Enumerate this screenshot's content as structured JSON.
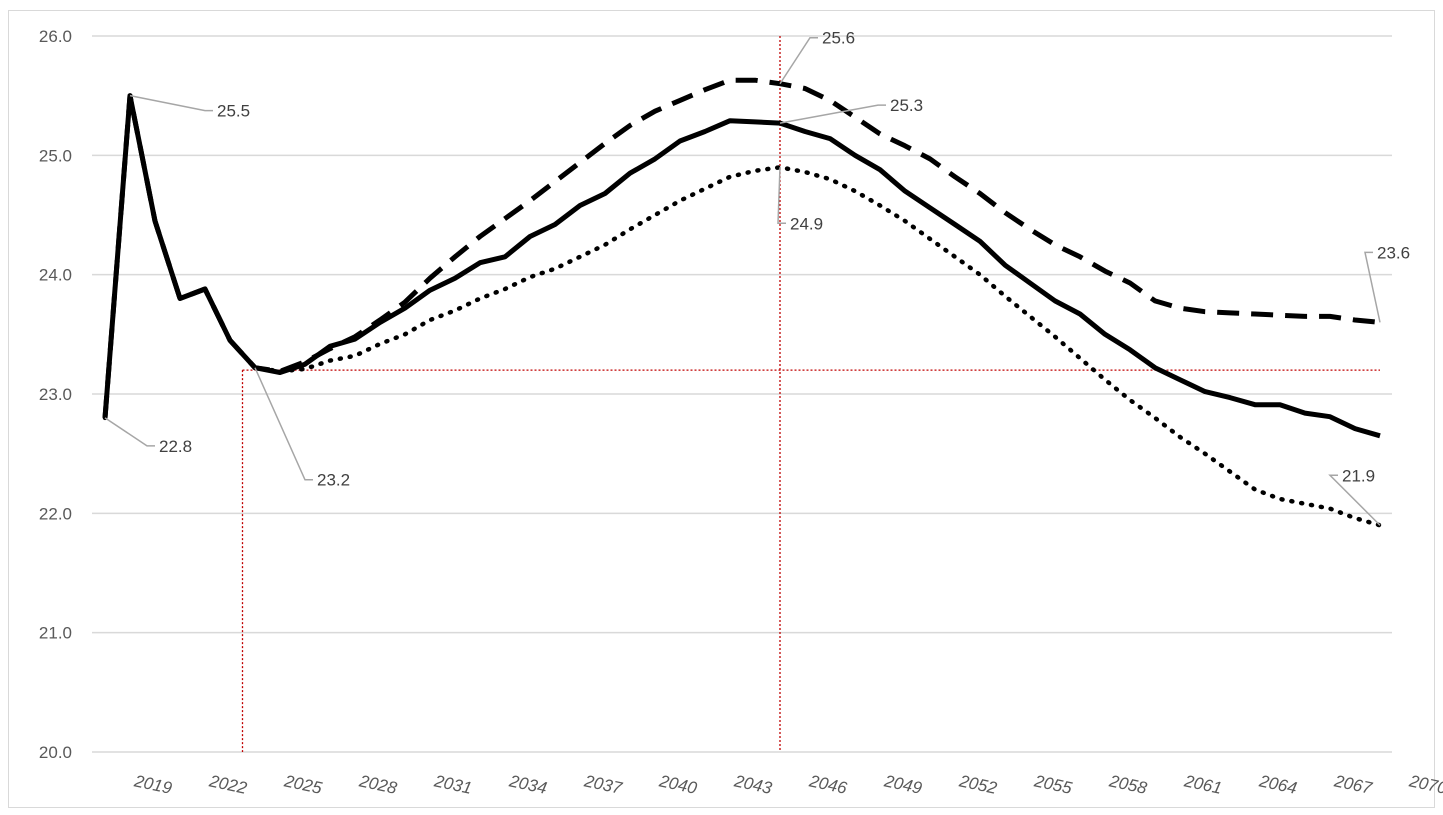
{
  "chart_data": {
    "type": "line",
    "title": "",
    "xlabel": "",
    "ylabel": "",
    "ylim": [
      20,
      26
    ],
    "yticks": [
      "20.0",
      "21.0",
      "22.0",
      "23.0",
      "24.0",
      "25.0",
      "26.0"
    ],
    "xlim": [
      2018,
      2070
    ],
    "xticks": [
      "2019",
      "2022",
      "2025",
      "2028",
      "2031",
      "2034",
      "2037",
      "2040",
      "2043",
      "2046",
      "2049",
      "2052",
      "2055",
      "2058",
      "2061",
      "2064",
      "2067",
      "2070"
    ],
    "grid": true,
    "legend": "none",
    "reference_lines": {
      "x": 2045,
      "y": 23.2,
      "x_from": 2023.5,
      "color": "#c00000"
    },
    "series": [
      {
        "style": "solid",
        "x": [
          2018,
          2019,
          2020,
          2021,
          2022,
          2023,
          2024,
          2025,
          2026,
          2027,
          2028,
          2029,
          2030,
          2031,
          2032,
          2033,
          2034,
          2035,
          2036,
          2037,
          2038,
          2039,
          2040,
          2041,
          2042,
          2043,
          2044,
          2045,
          2046,
          2047,
          2048,
          2049,
          2050,
          2051,
          2052,
          2053,
          2054,
          2055,
          2056,
          2057,
          2058,
          2059,
          2060,
          2061,
          2062,
          2063,
          2064,
          2065,
          2066,
          2067,
          2068,
          2069
        ],
        "values": [
          22.8,
          25.5,
          24.45,
          23.8,
          23.88,
          23.45,
          23.22,
          23.18,
          23.25,
          23.4,
          23.46,
          23.6,
          23.72,
          23.87,
          23.97,
          24.1,
          24.15,
          24.32,
          24.42,
          24.58,
          24.68,
          24.85,
          24.97,
          25.12,
          25.2,
          25.29,
          25.28,
          25.27,
          25.2,
          25.14,
          25.0,
          24.88,
          24.7,
          24.56,
          24.42,
          24.28,
          24.08,
          23.93,
          23.78,
          23.67,
          23.5,
          23.37,
          23.22,
          23.12,
          23.02,
          22.97,
          22.91,
          22.91,
          22.84,
          22.81,
          22.71,
          22.65
        ]
      },
      {
        "style": "dashed",
        "x": [
          2018,
          2019,
          2020,
          2021,
          2022,
          2023,
          2024,
          2025,
          2026,
          2027,
          2028,
          2029,
          2030,
          2031,
          2032,
          2033,
          2034,
          2035,
          2036,
          2037,
          2038,
          2039,
          2040,
          2041,
          2042,
          2043,
          2044,
          2045,
          2046,
          2047,
          2048,
          2049,
          2050,
          2051,
          2052,
          2053,
          2054,
          2055,
          2056,
          2057,
          2058,
          2059,
          2060,
          2061,
          2062,
          2063,
          2064,
          2065,
          2066,
          2067,
          2068,
          2069
        ],
        "values": [
          22.8,
          25.5,
          24.45,
          23.8,
          23.88,
          23.45,
          23.22,
          23.19,
          23.27,
          23.38,
          23.48,
          23.62,
          23.77,
          23.97,
          24.15,
          24.32,
          24.47,
          24.62,
          24.78,
          24.94,
          25.1,
          25.25,
          25.37,
          25.46,
          25.55,
          25.63,
          25.63,
          25.6,
          25.56,
          25.46,
          25.32,
          25.18,
          25.08,
          24.97,
          24.82,
          24.68,
          24.52,
          24.38,
          24.25,
          24.15,
          24.03,
          23.93,
          23.78,
          23.72,
          23.69,
          23.68,
          23.67,
          23.66,
          23.65,
          23.65,
          23.62,
          23.6
        ]
      },
      {
        "style": "dotted",
        "x": [
          2018,
          2019,
          2020,
          2021,
          2022,
          2023,
          2024,
          2025,
          2026,
          2027,
          2028,
          2029,
          2030,
          2031,
          2032,
          2033,
          2034,
          2035,
          2036,
          2037,
          2038,
          2039,
          2040,
          2041,
          2042,
          2043,
          2044,
          2045,
          2046,
          2047,
          2048,
          2049,
          2050,
          2051,
          2052,
          2053,
          2054,
          2055,
          2056,
          2057,
          2058,
          2059,
          2060,
          2061,
          2062,
          2063,
          2064,
          2065,
          2066,
          2067,
          2068,
          2069
        ],
        "values": [
          22.8,
          25.5,
          24.45,
          23.8,
          23.88,
          23.45,
          23.22,
          23.19,
          23.21,
          23.28,
          23.32,
          23.42,
          23.5,
          23.62,
          23.7,
          23.8,
          23.88,
          23.98,
          24.05,
          24.15,
          24.25,
          24.38,
          24.5,
          24.62,
          24.72,
          24.82,
          24.87,
          24.9,
          24.86,
          24.8,
          24.7,
          24.58,
          24.45,
          24.3,
          24.15,
          24.0,
          23.82,
          23.65,
          23.48,
          23.3,
          23.12,
          22.95,
          22.8,
          22.64,
          22.5,
          22.35,
          22.2,
          22.12,
          22.08,
          22.04,
          21.96,
          21.9
        ]
      }
    ],
    "annotations": [
      {
        "text": "22.8",
        "x": 2018,
        "y": 22.8
      },
      {
        "text": "25.5",
        "x": 2019,
        "y": 25.5
      },
      {
        "text": "23.2",
        "x": 2024,
        "y": 23.22
      },
      {
        "text": "25.6",
        "x": 2045,
        "y": 25.6
      },
      {
        "text": "25.3",
        "x": 2045,
        "y": 25.27
      },
      {
        "text": "24.9",
        "x": 2045,
        "y": 24.9
      },
      {
        "text": "23.6",
        "x": 2069,
        "y": 23.6
      },
      {
        "text": "21.9",
        "x": 2069,
        "y": 21.9
      }
    ],
    "colors": {
      "lines": "#000000",
      "grid": "#d9d9d9",
      "reference": "#c00000",
      "leader": "#a6a6a6",
      "text": "#595959"
    }
  }
}
